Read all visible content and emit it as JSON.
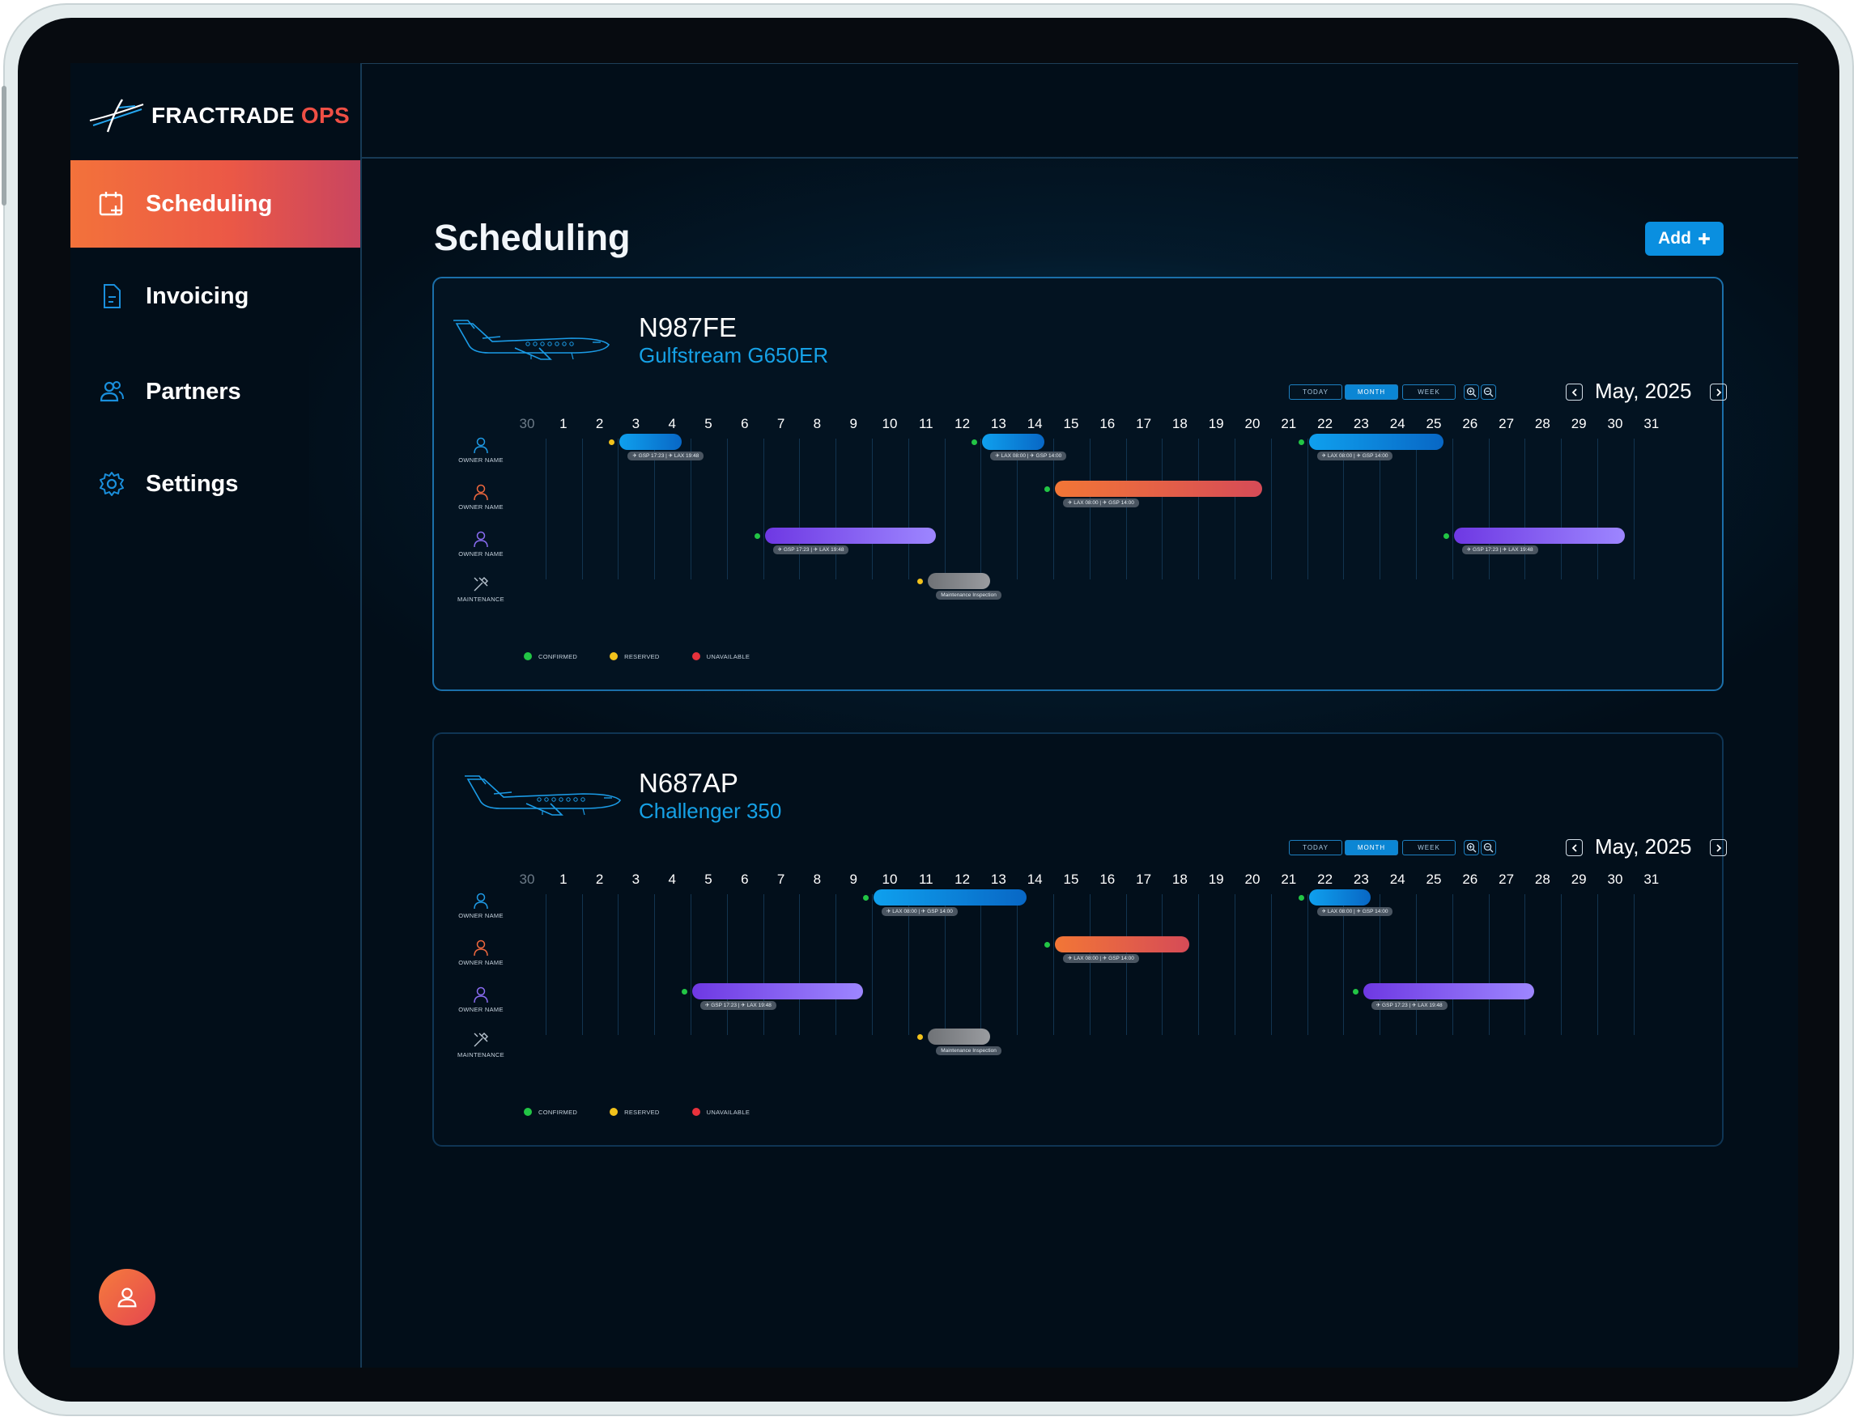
{
  "app": {
    "logo_text": "FRACTRADE",
    "logo_accent": "OPS",
    "page_title": "Scheduling",
    "add_label": "Add"
  },
  "sidebar": {
    "items": [
      {
        "label": "Scheduling",
        "icon": "calendar-plus-icon",
        "active": true
      },
      {
        "label": "Invoicing",
        "icon": "document-icon",
        "active": false
      },
      {
        "label": "Partners",
        "icon": "users-icon",
        "active": false
      },
      {
        "label": "Settings",
        "icon": "gear-icon",
        "active": false
      }
    ]
  },
  "controls": {
    "today": "TODAY",
    "month": "MONTH",
    "week": "WEEK",
    "selected": "MONTH"
  },
  "days": [
    "30",
    "1",
    "2",
    "3",
    "4",
    "5",
    "6",
    "7",
    "8",
    "9",
    "10",
    "11",
    "12",
    "13",
    "14",
    "15",
    "16",
    "17",
    "18",
    "19",
    "20",
    "21",
    "22",
    "23",
    "24",
    "25",
    "26",
    "27",
    "28",
    "29",
    "30",
    "31"
  ],
  "row_labels": [
    "OWNER NAME",
    "OWNER NAME",
    "OWNER NAME",
    "MAINTENANCE"
  ],
  "legend": [
    {
      "label": "CONFIRMED",
      "color": "#22c545"
    },
    {
      "label": "RESERVED",
      "color": "#f2c21b"
    },
    {
      "label": "UNAVAILABLE",
      "color": "#e8323c"
    }
  ],
  "colors": {
    "accent": "#0a8fe0",
    "nav_active": "#ef5a44",
    "logo_accent": "#ef4f45",
    "model_text": "#16a1e6"
  },
  "aircraft": [
    {
      "tail": "N987FE",
      "model": "Gulfstream G650ER",
      "month": "May, 2025",
      "bookings": [
        {
          "row": 0,
          "start": 3,
          "end": 4,
          "status": "#f2c21b",
          "grad": "blue-grad",
          "tag": "✈ GSP 17:23 | ✈ LAX 19:48"
        },
        {
          "row": 0,
          "start": 13,
          "end": 14,
          "status": "#22c545",
          "grad": "blue-grad",
          "tag": "✈ LAX 08:00 | ✈ GSP 14:00"
        },
        {
          "row": 0,
          "start": 22,
          "end": 25,
          "status": "#22c545",
          "grad": "blue-grad",
          "tag": "✈ LAX 08:00 | ✈ GSP 14:00"
        },
        {
          "row": 1,
          "start": 15,
          "end": 20,
          "status": "#22c545",
          "grad": "orange-grad",
          "tag": "✈ LAX 08:00 | ✈ GSP 14:00"
        },
        {
          "row": 2,
          "start": 7,
          "end": 11,
          "status": "#22c545",
          "grad": "purple-grad",
          "tag": "✈ GSP 17:23 | ✈ LAX 19:48"
        },
        {
          "row": 2,
          "start": 26,
          "end": 30,
          "status": "#22c545",
          "grad": "purple-grad",
          "tag": "✈ GSP 17:23 | ✈ LAX 19:48"
        },
        {
          "row": 3,
          "start": 11.5,
          "end": 12.5,
          "status": "#f2c21b",
          "grad": "grey-grad",
          "tag": "Maintenance Inspection"
        }
      ]
    },
    {
      "tail": "N687AP",
      "model": "Challenger 350",
      "month": "May, 2025",
      "bookings": [
        {
          "row": 0,
          "start": 10,
          "end": 13.5,
          "status": "#22c545",
          "grad": "blue-grad",
          "tag": "✈ LAX 08:00 | ✈ GSP 14:00"
        },
        {
          "row": 0,
          "start": 22,
          "end": 23,
          "status": "#22c545",
          "grad": "blue-grad",
          "tag": "✈ LAX 08:00 | ✈ GSP 14:00"
        },
        {
          "row": 1,
          "start": 15,
          "end": 18,
          "status": "#22c545",
          "grad": "orange-grad",
          "tag": "✈ LAX 08:00 | ✈ GSP 14:00"
        },
        {
          "row": 2,
          "start": 5,
          "end": 9,
          "status": "#22c545",
          "grad": "purple-grad",
          "tag": "✈ GSP 17:23 | ✈ LAX 19:48"
        },
        {
          "row": 2,
          "start": 23.5,
          "end": 27.5,
          "status": "#22c545",
          "grad": "purple-grad",
          "tag": "✈ GSP 17:23 | ✈ LAX 19:48"
        },
        {
          "row": 3,
          "start": 11.5,
          "end": 12.5,
          "status": "#f2c21b",
          "grad": "grey-grad",
          "tag": "Maintenance Inspection"
        }
      ]
    }
  ]
}
